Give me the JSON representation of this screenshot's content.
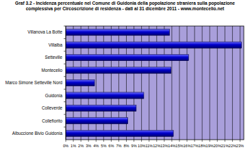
{
  "chart_data": {
    "type": "bar",
    "orientation": "horizontal",
    "title": "Graf 3.2 - Incidenza percentuale nel Comune di Guidonia della popolazione straniera sulla popolazione complessiva per Circoscrizione di residenza - dati al 31 dicembre 2011 - www.montecelio.net",
    "categories": [
      "Villanova La Botte",
      "Villalba",
      "Setteville",
      "Montecelio",
      "Marco Simone Setteville Nord",
      "Guidonia",
      "Colleverde",
      "Collefiorito",
      "Albuccione Bivio Guidonia"
    ],
    "values": [
      13.7,
      23.2,
      16.2,
      13.9,
      3.8,
      10.3,
      9.3,
      8.2,
      14.2
    ],
    "color": "#0000cc",
    "xlim": [
      0,
      23.5
    ],
    "xticks": [
      {
        "value": 0,
        "label": "0%"
      },
      {
        "value": 1,
        "label": "1%"
      },
      {
        "value": 2,
        "label": "2%"
      },
      {
        "value": 3,
        "label": "3%"
      },
      {
        "value": 4,
        "label": "4%"
      },
      {
        "value": 5,
        "label": "5%"
      },
      {
        "value": 6,
        "label": "6%"
      },
      {
        "value": 7,
        "label": "7%"
      },
      {
        "value": 8,
        "label": "8%"
      },
      {
        "value": 9,
        "label": "9%"
      },
      {
        "value": 10,
        "label": "10%"
      },
      {
        "value": 11,
        "label": "11%"
      },
      {
        "value": 12,
        "label": "12%"
      },
      {
        "value": 13,
        "label": "13%"
      },
      {
        "value": 14,
        "label": "14%"
      },
      {
        "value": 15,
        "label": "15%"
      },
      {
        "value": 16,
        "label": "16%"
      },
      {
        "value": 17,
        "label": "17%"
      },
      {
        "value": 18,
        "label": "18%"
      },
      {
        "value": 19,
        "label": "19%"
      },
      {
        "value": 20,
        "label": "20%"
      },
      {
        "value": 21,
        "label": "21%"
      },
      {
        "value": 22,
        "label": "22%"
      },
      {
        "value": 23,
        "label": "23%"
      }
    ],
    "grid": true
  }
}
